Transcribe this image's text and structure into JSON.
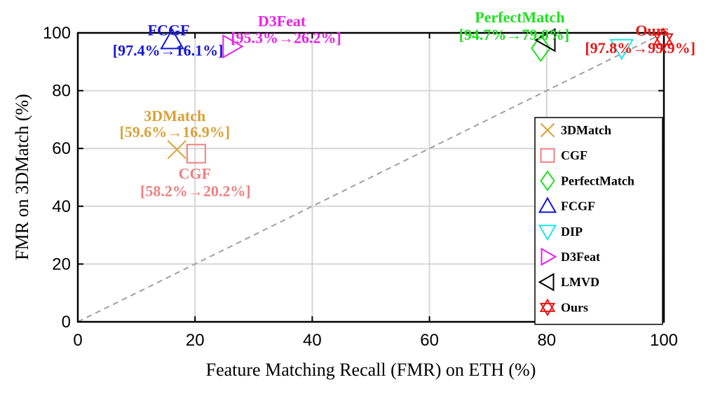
{
  "chart_data": {
    "type": "scatter",
    "xlabel": "Feature Matching Recall (FMR) on ETH (%)",
    "ylabel": "FMR on 3DMatch (%)",
    "xlim": [
      0,
      100
    ],
    "ylim": [
      0,
      100
    ],
    "xticks": [
      0,
      20,
      40,
      60,
      80,
      100
    ],
    "yticks": [
      0,
      20,
      40,
      60,
      80,
      100
    ],
    "grid": true,
    "legend_position": "bottom-right",
    "reference_line": {
      "style": "dashed",
      "color": "#a0a0a0",
      "from": [
        0,
        0
      ],
      "to": [
        100,
        100
      ]
    },
    "series": [
      {
        "name": "3DMatch",
        "marker": "x",
        "color": "#d9a135",
        "x": 16.9,
        "y": 59.6,
        "annotation": [
          "3DMatch",
          "[59.6%→16.9%]"
        ]
      },
      {
        "name": "CGF",
        "marker": "square",
        "color": "#f08080",
        "x": 20.2,
        "y": 58.2,
        "annotation": [
          "CGF",
          "[58.2%→20.2%]"
        ]
      },
      {
        "name": "PerfectMatch",
        "marker": "diamond",
        "color": "#1fe01f",
        "x": 79.0,
        "y": 94.7,
        "annotation": [
          "PerfectMatch",
          "[94.7%→79.0%]"
        ]
      },
      {
        "name": "FCGF",
        "marker": "triangle-up",
        "color": "#1414d8",
        "x": 16.1,
        "y": 97.4,
        "annotation": [
          "FCGF",
          "[97.4%→16.1%]"
        ]
      },
      {
        "name": "DIP",
        "marker": "triangle-down",
        "color": "#1ee6e6",
        "x": 92.8,
        "y": 94.8,
        "annotation": []
      },
      {
        "name": "D3Feat",
        "marker": "triangle-right",
        "color": "#ec1fec",
        "x": 26.2,
        "y": 95.3,
        "annotation": [
          "D3Feat",
          "[95.3%→26.2%]"
        ]
      },
      {
        "name": "LMVD",
        "marker": "triangle-left",
        "color": "#000000",
        "x": 80.0,
        "y": 97.5,
        "annotation": []
      },
      {
        "name": "Ours",
        "marker": "hexagram",
        "color": "#e81616",
        "x": 99.9,
        "y": 97.8,
        "annotation": [
          "Ours",
          "[97.8%→99.9%]"
        ]
      }
    ]
  }
}
